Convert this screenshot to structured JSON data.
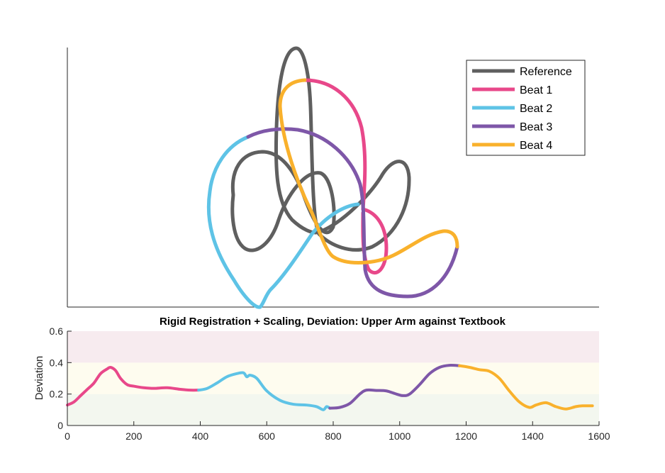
{
  "colors": {
    "reference": "#5f5f5f",
    "beat1": "#e8488a",
    "beat2": "#5ec3e6",
    "beat3": "#7e57a8",
    "beat4": "#f9b12c",
    "band_red": "#f7ebef",
    "band_yellow": "#fefcef",
    "band_green": "#f3f7ef",
    "axis": "#262626"
  },
  "chart_data": [
    {
      "type": "line",
      "plot": "trajectory",
      "axes_visible": "left and bottom lines only, no ticks",
      "legend": {
        "placement": "top-right",
        "entries": [
          "Reference",
          "Beat 1",
          "Beat 2",
          "Beat 3",
          "Beat 4"
        ]
      },
      "series": [
        {
          "name": "Reference",
          "color_key": "reference"
        },
        {
          "name": "Beat 1",
          "color_key": "beat1"
        },
        {
          "name": "Beat 2",
          "color_key": "beat2"
        },
        {
          "name": "Beat 3",
          "color_key": "beat3"
        },
        {
          "name": "Beat 4",
          "color_key": "beat4"
        }
      ]
    },
    {
      "type": "line",
      "plot": "deviation",
      "title": "Rigid Registration + Scaling, Deviation: Upper Arm against Textbook",
      "xlabel": "",
      "ylabel": "Deviation",
      "xlim": [
        0,
        1600
      ],
      "ylim": [
        0,
        0.6
      ],
      "xticks": [
        "0",
        "200",
        "400",
        "600",
        "800",
        "1000",
        "1200",
        "1400",
        "1600"
      ],
      "yticks": [
        "0",
        "0.2",
        "0.4",
        "0.6"
      ],
      "bands": [
        {
          "from": 0,
          "to": 0.2,
          "color_key": "band_green"
        },
        {
          "from": 0.2,
          "to": 0.4,
          "color_key": "band_yellow"
        },
        {
          "from": 0.4,
          "to": 0.6,
          "color_key": "band_red"
        }
      ],
      "series": [
        {
          "name": "Beat 1",
          "color_key": "beat1",
          "x": [
            0,
            20,
            40,
            60,
            80,
            100,
            120,
            130,
            145,
            160,
            180,
            200,
            230,
            260,
            300,
            340,
            370,
            395
          ],
          "y": [
            0.13,
            0.15,
            0.19,
            0.23,
            0.27,
            0.33,
            0.36,
            0.37,
            0.35,
            0.3,
            0.26,
            0.25,
            0.24,
            0.236,
            0.24,
            0.23,
            0.225,
            0.225
          ]
        },
        {
          "name": "Beat 2",
          "color_key": "beat2",
          "x": [
            395,
            420,
            450,
            480,
            510,
            530,
            540,
            550,
            570,
            600,
            640,
            680,
            720,
            750,
            770,
            780,
            790
          ],
          "y": [
            0.225,
            0.235,
            0.27,
            0.31,
            0.33,
            0.335,
            0.31,
            0.32,
            0.3,
            0.22,
            0.16,
            0.135,
            0.13,
            0.12,
            0.1,
            0.12,
            0.11
          ]
        },
        {
          "name": "Beat 3",
          "color_key": "beat3",
          "x": [
            790,
            820,
            850,
            880,
            900,
            930,
            960,
            990,
            1010,
            1030,
            1060,
            1090,
            1120,
            1150,
            1180
          ],
          "y": [
            0.11,
            0.115,
            0.14,
            0.2,
            0.225,
            0.223,
            0.22,
            0.2,
            0.19,
            0.2,
            0.26,
            0.33,
            0.37,
            0.383,
            0.38
          ]
        },
        {
          "name": "Beat 4",
          "color_key": "beat4",
          "x": [
            1180,
            1210,
            1240,
            1270,
            1300,
            1330,
            1360,
            1390,
            1410,
            1440,
            1470,
            1500,
            1530,
            1550,
            1580
          ],
          "y": [
            0.38,
            0.37,
            0.355,
            0.345,
            0.3,
            0.22,
            0.15,
            0.115,
            0.13,
            0.145,
            0.12,
            0.105,
            0.12,
            0.125,
            0.125
          ]
        }
      ]
    }
  ]
}
